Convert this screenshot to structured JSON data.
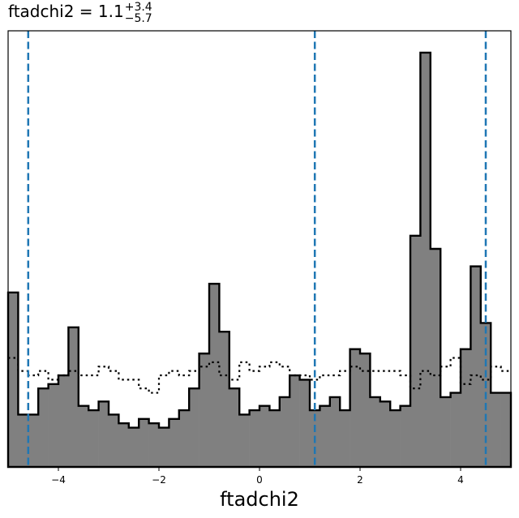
{
  "chart_data": {
    "type": "histogram",
    "title": {
      "base": "ftadchi2 = 1.1",
      "sup": "+3.4",
      "sub": "−5.7"
    },
    "xlabel": "ftadchi2",
    "ylabel": "",
    "xlim": [
      -5,
      5
    ],
    "ylim": [
      0,
      1.0
    ],
    "x_ticks": [
      -4,
      -2,
      0,
      2,
      4
    ],
    "x_tick_labels": [
      "−4",
      "−2",
      "0",
      "2",
      "4"
    ],
    "y_ticks_visible": false,
    "bin_edges": [
      -5.0,
      -4.8,
      -4.6,
      -4.4,
      -4.2,
      -4.0,
      -3.8,
      -3.6,
      -3.4,
      -3.2,
      -3.0,
      -2.8,
      -2.6,
      -2.4,
      -2.2,
      -2.0,
      -1.8,
      -1.6,
      -1.4,
      -1.2,
      -1.0,
      -0.8,
      -0.6,
      -0.4,
      -0.2,
      0.0,
      0.2,
      0.4,
      0.6,
      0.8,
      1.0,
      1.2,
      1.4,
      1.6,
      1.8,
      2.0,
      2.2,
      2.4,
      2.6,
      2.8,
      3.0,
      3.2,
      3.4,
      3.6,
      3.8,
      4.0,
      4.2,
      4.4,
      4.6,
      4.8,
      5.0
    ],
    "series": [
      {
        "kind": "filled-step",
        "fill": "#808080",
        "edge": "#000000",
        "values": [
          0.4,
          0.12,
          0.12,
          0.18,
          0.19,
          0.21,
          0.32,
          0.14,
          0.13,
          0.15,
          0.12,
          0.1,
          0.09,
          0.11,
          0.1,
          0.09,
          0.11,
          0.13,
          0.18,
          0.26,
          0.42,
          0.31,
          0.18,
          0.12,
          0.13,
          0.14,
          0.13,
          0.16,
          0.21,
          0.2,
          0.13,
          0.14,
          0.16,
          0.13,
          0.27,
          0.26,
          0.16,
          0.15,
          0.13,
          0.14,
          0.53,
          0.95,
          0.5,
          0.16,
          0.17,
          0.27,
          0.46,
          0.33,
          0.17,
          0.17
        ]
      },
      {
        "kind": "dotted-step",
        "edge": "#000000",
        "values": [
          0.25,
          0.22,
          0.21,
          0.22,
          0.2,
          0.21,
          0.22,
          0.21,
          0.21,
          0.23,
          0.22,
          0.2,
          0.2,
          0.18,
          0.17,
          0.21,
          0.22,
          0.21,
          0.22,
          0.23,
          0.24,
          0.21,
          0.2,
          0.24,
          0.22,
          0.23,
          0.24,
          0.23,
          0.21,
          0.21,
          0.2,
          0.21,
          0.21,
          0.22,
          0.23,
          0.22,
          0.22,
          0.22,
          0.22,
          0.21,
          0.18,
          0.22,
          0.21,
          0.23,
          0.25,
          0.19,
          0.21,
          0.2,
          0.23,
          0.22
        ]
      }
    ],
    "vlines": [
      {
        "x": -4.6,
        "style": "dashed",
        "color": "#1f77b4"
      },
      {
        "x": 1.1,
        "style": "dashed",
        "color": "#1f77b4"
      },
      {
        "x": 4.5,
        "style": "dashed",
        "color": "#1f77b4"
      }
    ],
    "grid": false,
    "legend": "none"
  }
}
